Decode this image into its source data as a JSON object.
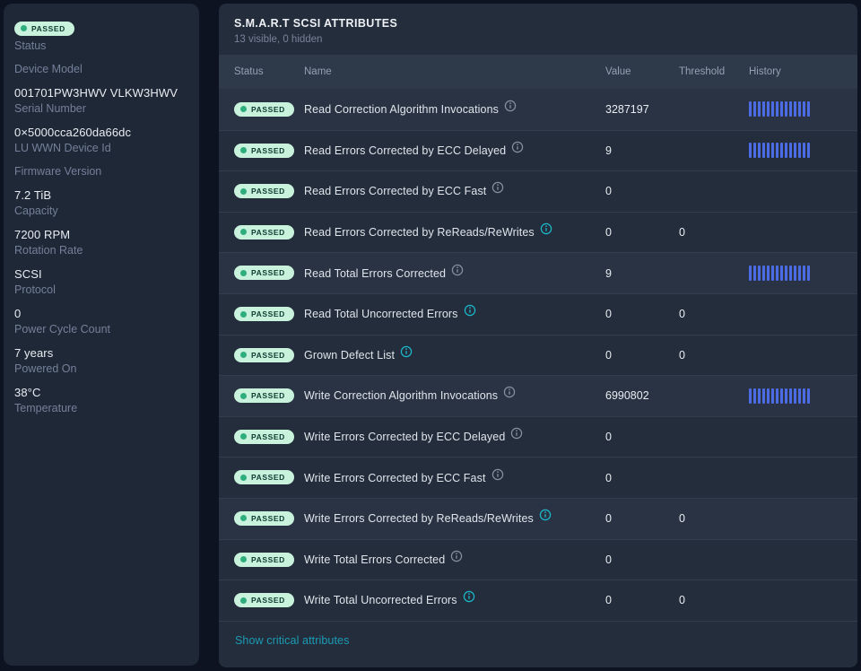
{
  "colors": {
    "page_bg": "#0d1320",
    "sidebar_bg": "#1f2836",
    "card_bg": "#242d3b",
    "table_header_bg": "#2e3949",
    "row_highlight_bg": "#2a3343",
    "badge_bg": "#c9f2dc",
    "badge_dot": "#2fae7d",
    "badge_text": "#0c3b31",
    "history_bar": "#4b6ce4",
    "info_icon_gray": "#87909f",
    "info_icon_teal": "#1cb9cc",
    "link_teal": "#1b9cb5"
  },
  "sidebar": {
    "items": [
      {
        "badge": "PASSED",
        "value": "",
        "label": "Status"
      },
      {
        "value": "",
        "label": "Device Model"
      },
      {
        "value": "001701PW3HWV VLKW3HWV",
        "label": "Serial Number"
      },
      {
        "value": "0×5000cca260da66dc",
        "label": "LU WWN Device Id"
      },
      {
        "value": "",
        "label": "Firmware Version"
      },
      {
        "value": "7.2 TiB",
        "label": "Capacity"
      },
      {
        "value": "7200 RPM",
        "label": "Rotation Rate"
      },
      {
        "value": "SCSI",
        "label": "Protocol"
      },
      {
        "value": "0",
        "label": "Power Cycle Count"
      },
      {
        "value": "7 years",
        "label": "Powered On"
      },
      {
        "value": "38°C",
        "label": "Temperature"
      }
    ]
  },
  "attributes": {
    "title": "S.M.A.R.T SCSI ATTRIBUTES",
    "subtitle": "13 visible, 0 hidden",
    "columns": {
      "status": "Status",
      "name": "Name",
      "value": "Value",
      "threshold": "Threshold",
      "history": "History"
    },
    "history_bar_count": 14,
    "footer_link": "Show critical attributes",
    "rows": [
      {
        "status": "PASSED",
        "name": "Read Correction Algorithm Invocations",
        "value": "3287197",
        "threshold": "",
        "history": true,
        "critical_icon": false,
        "highlighted": true
      },
      {
        "status": "PASSED",
        "name": "Read Errors Corrected by ECC Delayed",
        "value": "9",
        "threshold": "",
        "history": true,
        "critical_icon": false,
        "highlighted": false
      },
      {
        "status": "PASSED",
        "name": "Read Errors Corrected by ECC Fast",
        "value": "0",
        "threshold": "",
        "history": false,
        "critical_icon": false,
        "highlighted": false
      },
      {
        "status": "PASSED",
        "name": "Read Errors Corrected by ReReads/ReWrites",
        "value": "0",
        "threshold": "0",
        "history": false,
        "critical_icon": true,
        "highlighted": false
      },
      {
        "status": "PASSED",
        "name": "Read Total Errors Corrected",
        "value": "9",
        "threshold": "",
        "history": true,
        "critical_icon": false,
        "highlighted": true
      },
      {
        "status": "PASSED",
        "name": "Read Total Uncorrected Errors",
        "value": "0",
        "threshold": "0",
        "history": false,
        "critical_icon": true,
        "highlighted": false
      },
      {
        "status": "PASSED",
        "name": "Grown Defect List",
        "value": "0",
        "threshold": "0",
        "history": false,
        "critical_icon": true,
        "highlighted": false
      },
      {
        "status": "PASSED",
        "name": "Write Correction Algorithm Invocations",
        "value": "6990802",
        "threshold": "",
        "history": true,
        "critical_icon": false,
        "highlighted": true
      },
      {
        "status": "PASSED",
        "name": "Write Errors Corrected by ECC Delayed",
        "value": "0",
        "threshold": "",
        "history": false,
        "critical_icon": false,
        "highlighted": false
      },
      {
        "status": "PASSED",
        "name": "Write Errors Corrected by ECC Fast",
        "value": "0",
        "threshold": "",
        "history": false,
        "critical_icon": false,
        "highlighted": false
      },
      {
        "status": "PASSED",
        "name": "Write Errors Corrected by ReReads/ReWrites",
        "value": "0",
        "threshold": "0",
        "history": false,
        "critical_icon": true,
        "highlighted": true
      },
      {
        "status": "PASSED",
        "name": "Write Total Errors Corrected",
        "value": "0",
        "threshold": "",
        "history": false,
        "critical_icon": false,
        "highlighted": false
      },
      {
        "status": "PASSED",
        "name": "Write Total Uncorrected Errors",
        "value": "0",
        "threshold": "0",
        "history": false,
        "critical_icon": true,
        "highlighted": false
      }
    ]
  }
}
